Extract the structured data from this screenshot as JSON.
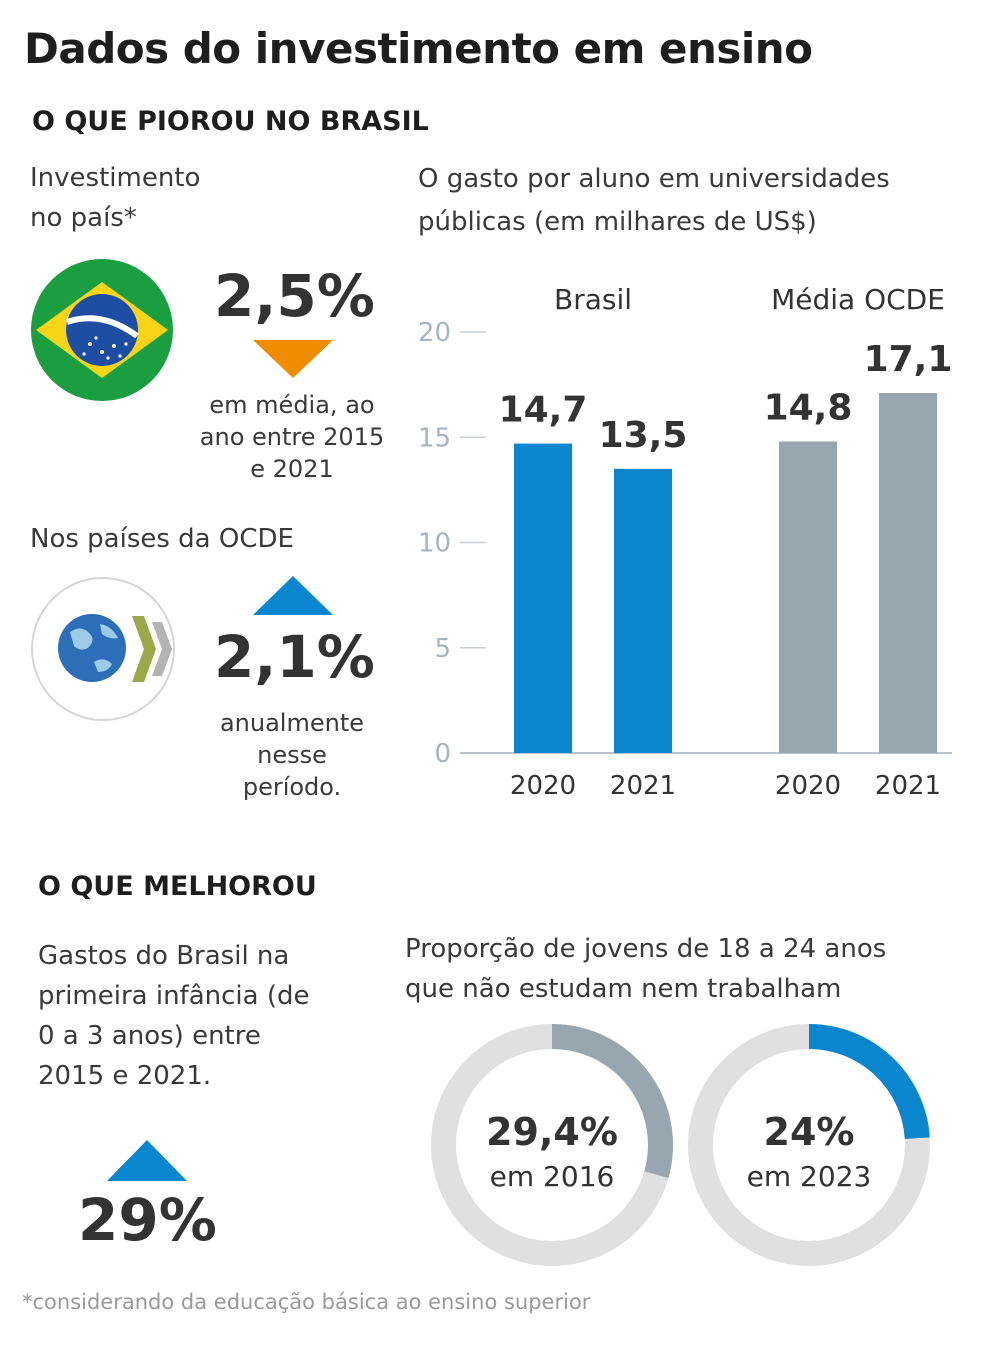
{
  "title": "Dados do investimento em ensino",
  "section_worse": "O QUE PIOROU NO BRASIL",
  "section_better": "O QUE MELHOROU",
  "brazil": {
    "label_line1": "Investimento",
    "label_line2": "no país*",
    "value": "2,5%",
    "trend": "down",
    "note_line1": "em média, ao",
    "note_line2": "ano entre 2015",
    "note_line3": "e 2021"
  },
  "ocde": {
    "label": "Nos países da OCDE",
    "value": "2,1%",
    "trend": "up",
    "note_line1": "anualmente",
    "note_line2": "nesse",
    "note_line3": "período."
  },
  "early_childhood": {
    "label_line1": "Gastos do Brasil na",
    "label_line2": "primeira infância (de",
    "label_line3": "0 a 3 anos) entre",
    "label_line4": "2015 e 2021.",
    "value": "29%",
    "trend": "up"
  },
  "colors": {
    "blue": "#0a86cf",
    "gray": "#98a6b0",
    "orange": "#f08c00",
    "track": "#e0e0e0"
  },
  "chart_data": [
    {
      "type": "bar",
      "title_line1": "O gasto por aluno em universidades",
      "title_line2": "públicas (em milhares de US$)",
      "groups": [
        "Brasil",
        "Média OCDE"
      ],
      "categories": [
        "2020",
        "2021"
      ],
      "series": [
        {
          "name": "Brasil",
          "values": [
            14.7,
            13.5
          ],
          "labels": [
            "14,7",
            "13,5"
          ],
          "color": "#0a86cf"
        },
        {
          "name": "Média OCDE",
          "values": [
            14.8,
            17.1
          ],
          "labels": [
            "14,8",
            "17,1"
          ],
          "color": "#98a6b0"
        }
      ],
      "yticks": [
        0,
        5,
        10,
        15,
        20
      ],
      "ylim": [
        0,
        20
      ],
      "grid": false
    },
    {
      "type": "pie",
      "title_line1": "Proporção de jovens de 18 a 24 anos",
      "title_line2": "que não estudam nem trabalham",
      "donuts": [
        {
          "value": 29.4,
          "label": "29,4%",
          "sublabel": "em 2016",
          "color": "#98a6b0"
        },
        {
          "value": 24,
          "label": "24%",
          "sublabel": "em 2023",
          "color": "#0a86cf"
        }
      ]
    }
  ],
  "footnote": "*considerando da educação básica ao ensino superior"
}
